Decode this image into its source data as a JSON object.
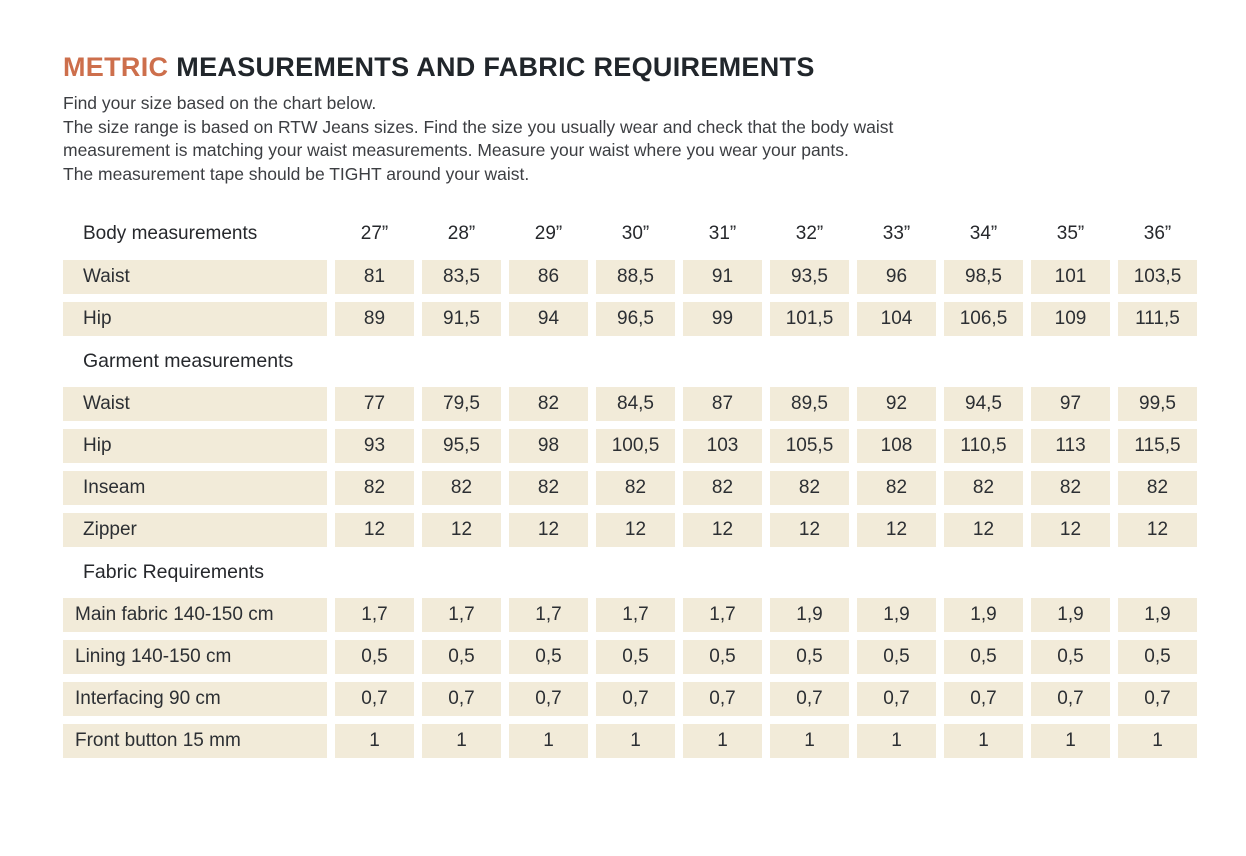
{
  "header": {
    "title_accent": "METRIC",
    "title_rest": "MEASUREMENTS AND FABRIC REQUIREMENTS",
    "accent_color": "#cd6f4c",
    "intro_lines": [
      "Find your size based on the chart below.",
      "The size range is based on RTW Jeans sizes. Find the size you usually wear and check that the body waist",
      "measurement is matching your waist measurements. Measure your waist where you wear your pants.",
      "The measurement tape should be TIGHT around your waist."
    ]
  },
  "table": {
    "cell_background": "#f2ebd9",
    "size_header": {
      "label": "Body measurements",
      "sizes": [
        "27”",
        "28”",
        "29”",
        "30”",
        "31”",
        "32”",
        "33”",
        "34”",
        "35”",
        "36”"
      ]
    },
    "sections": [
      {
        "title": null,
        "compact_labels": false,
        "rows": [
          {
            "label": "Waist",
            "values": [
              "81",
              "83,5",
              "86",
              "88,5",
              "91",
              "93,5",
              "96",
              "98,5",
              "101",
              "103,5"
            ]
          },
          {
            "label": "Hip",
            "values": [
              "89",
              "91,5",
              "94",
              "96,5",
              "99",
              "101,5",
              "104",
              "106,5",
              "109",
              "111,5"
            ]
          }
        ]
      },
      {
        "title": "Garment measurements",
        "compact_labels": false,
        "rows": [
          {
            "label": "Waist",
            "values": [
              "77",
              "79,5",
              "82",
              "84,5",
              "87",
              "89,5",
              "92",
              "94,5",
              "97",
              "99,5"
            ]
          },
          {
            "label": "Hip",
            "values": [
              "93",
              "95,5",
              "98",
              "100,5",
              "103",
              "105,5",
              "108",
              "110,5",
              "113",
              "115,5"
            ]
          },
          {
            "label": "Inseam",
            "values": [
              "82",
              "82",
              "82",
              "82",
              "82",
              "82",
              "82",
              "82",
              "82",
              "82"
            ]
          },
          {
            "label": "Zipper",
            "values": [
              "12",
              "12",
              "12",
              "12",
              "12",
              "12",
              "12",
              "12",
              "12",
              "12"
            ]
          }
        ]
      },
      {
        "title": "Fabric Requirements",
        "compact_labels": true,
        "rows": [
          {
            "label": "Main fabric 140-150 cm",
            "values": [
              "1,7",
              "1,7",
              "1,7",
              "1,7",
              "1,7",
              "1,9",
              "1,9",
              "1,9",
              "1,9",
              "1,9"
            ]
          },
          {
            "label": "Lining 140-150 cm",
            "values": [
              "0,5",
              "0,5",
              "0,5",
              "0,5",
              "0,5",
              "0,5",
              "0,5",
              "0,5",
              "0,5",
              "0,5"
            ]
          },
          {
            "label": "Interfacing 90 cm",
            "values": [
              "0,7",
              "0,7",
              "0,7",
              "0,7",
              "0,7",
              "0,7",
              "0,7",
              "0,7",
              "0,7",
              "0,7"
            ]
          },
          {
            "label": "Front button 15 mm",
            "values": [
              "1",
              "1",
              "1",
              "1",
              "1",
              "1",
              "1",
              "1",
              "1",
              "1"
            ]
          }
        ]
      }
    ]
  }
}
